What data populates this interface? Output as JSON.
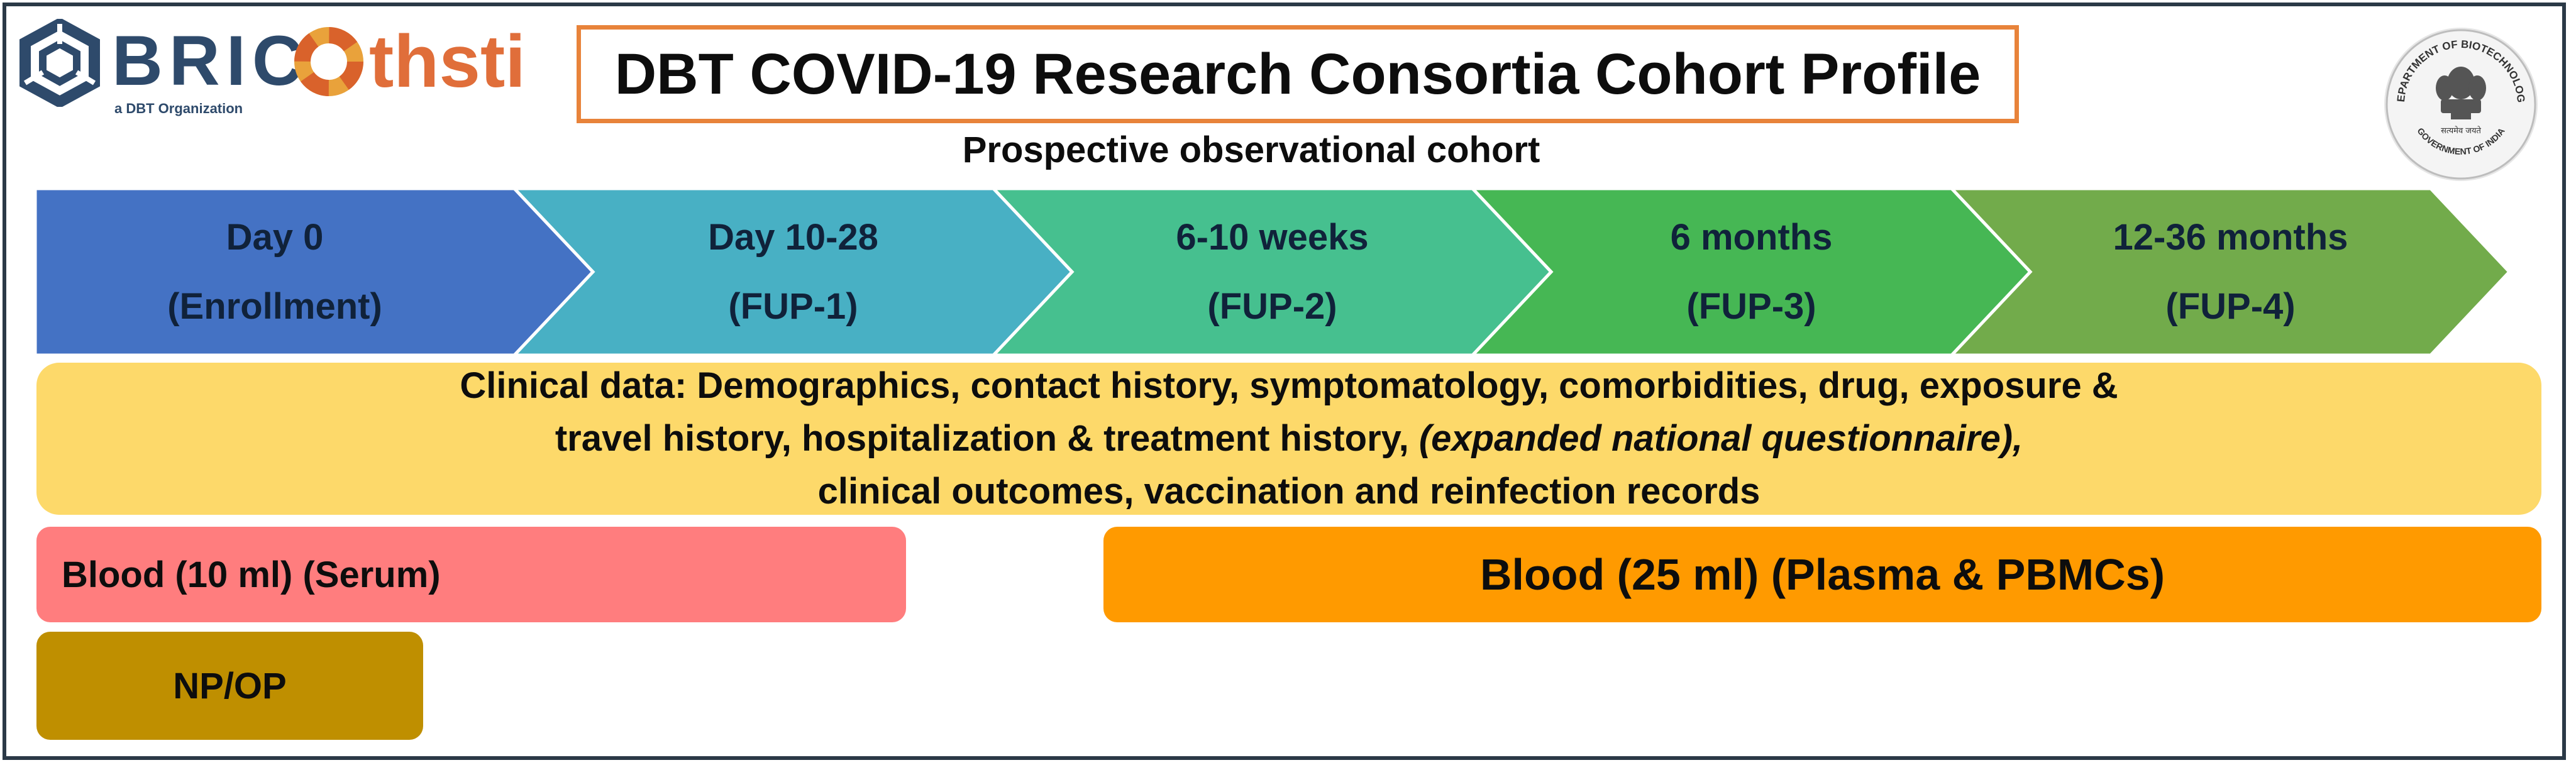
{
  "logos": {
    "bric": {
      "name": "BRIC",
      "tagline": "a DBT Organization"
    },
    "thsti": {
      "name": "thsti"
    },
    "emblem": {
      "top_text": "DEPARTMENT OF BIOTECHNOLOGY",
      "bottom_text": "GOVERNMENT OF INDIA",
      "motto": "सत्यमेव जयते"
    }
  },
  "header": {
    "title": "DBT COVID-19 Research Consortia Cohort Profile",
    "subtitle": "Prospective observational cohort"
  },
  "timeline": [
    {
      "label": "Day 0",
      "sub": "(Enrollment)",
      "color": "#4472c4"
    },
    {
      "label": "Day 10-28",
      "sub": "(FUP-1)",
      "color": "#48b0c4"
    },
    {
      "label": "6-10 weeks",
      "sub": "(FUP-2)",
      "color": "#46c08f"
    },
    {
      "label": "6 months",
      "sub": "(FUP-3)",
      "color": "#46b754"
    },
    {
      "label": "12-36 months",
      "sub": "(FUP-4)",
      "color": "#72ab4b"
    }
  ],
  "clinical": {
    "line1": "Clinical data: Demographics, contact history, symptomatology, comorbidities, drug, exposure &",
    "line2a": "travel history, hospitalization & treatment history,",
    "line2b": "(expanded national questionnaire),",
    "line3": "clinical outcomes, vaccination and reinfection records",
    "color": "#fdd96a"
  },
  "samples": {
    "blood10": {
      "label": "Blood (10 ml) (Serum)",
      "color": "#ff7d7e"
    },
    "blood25": {
      "label": "Blood (25 ml) (Plasma & PBMCs)",
      "color": "#ff9a00"
    },
    "npop": {
      "label": "NP/OP",
      "color": "#bf8f00"
    }
  }
}
